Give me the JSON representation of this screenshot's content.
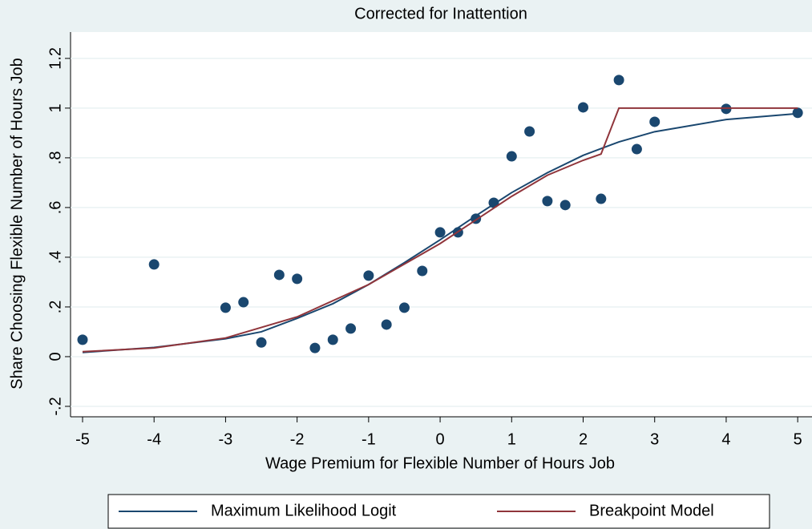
{
  "chart_data": {
    "type": "scatter",
    "title": "Corrected for Inattention",
    "x_label": "Wage Premium for Flexible Number of Hours Job",
    "y_label": "Share Choosing Flexible Number of Hours Job",
    "xlim": [
      -5.168,
      5.2
    ],
    "ylim": [
      -0.242,
      1.306
    ],
    "xticks": [
      -5,
      -4,
      -3,
      -2,
      -1,
      0,
      1,
      2,
      3,
      4,
      5
    ],
    "yticks": [
      {
        "value": -0.2,
        "label": "-.2"
      },
      0,
      {
        "value": 0.2,
        "label": ".2"
      },
      {
        "value": 0.4,
        "label": ".4"
      },
      {
        "value": 0.6,
        "label": ".6"
      },
      {
        "value": 0.8,
        "label": ".8"
      },
      1,
      {
        "value": 1.2,
        "label": "1.2"
      }
    ],
    "grid": true,
    "points": {
      "color": "#1a476f",
      "x": [
        -5,
        -4,
        -3,
        -2.75,
        -2.5,
        -2.25,
        -2,
        -1.75,
        -1.5,
        -1.25,
        -1,
        -0.75,
        -0.5,
        -0.25,
        0,
        0.25,
        0.5,
        0.75,
        1,
        1.25,
        1.5,
        1.75,
        2,
        2.25,
        2.5,
        2.75,
        3,
        4,
        5
      ],
      "values": [
        0.068,
        0.371,
        0.197,
        0.219,
        0.057,
        0.329,
        0.313,
        0.035,
        0.068,
        0.113,
        0.326,
        0.129,
        0.197,
        0.345,
        0.5,
        0.5,
        0.555,
        0.619,
        0.806,
        0.906,
        0.626,
        0.61,
        1.003,
        0.635,
        1.113,
        0.835,
        0.945,
        0.997,
        0.981
      ]
    },
    "series": [
      {
        "name": "Maximum Likelihood Logit",
        "color": "#1a476f",
        "x": [
          -5,
          -4,
          -3,
          -2.5,
          -2,
          -1.5,
          -1,
          -0.5,
          0,
          0.5,
          1,
          1.5,
          2,
          2.5,
          3,
          4,
          5
        ],
        "values": [
          0.017,
          0.037,
          0.072,
          0.1,
          0.154,
          0.213,
          0.29,
          0.378,
          0.47,
          0.567,
          0.66,
          0.74,
          0.81,
          0.864,
          0.905,
          0.954,
          0.978
        ]
      },
      {
        "name": "Breakpoint Model",
        "color": "#90353b",
        "x": [
          -5,
          -4,
          -3,
          -2,
          -1,
          0,
          0.5,
          1,
          1.5,
          2,
          2.25,
          2.5,
          5
        ],
        "values": [
          0.02,
          0.035,
          0.075,
          0.16,
          0.29,
          0.455,
          0.55,
          0.645,
          0.73,
          0.79,
          0.815,
          1,
          1
        ]
      }
    ],
    "legend": "bottom"
  }
}
